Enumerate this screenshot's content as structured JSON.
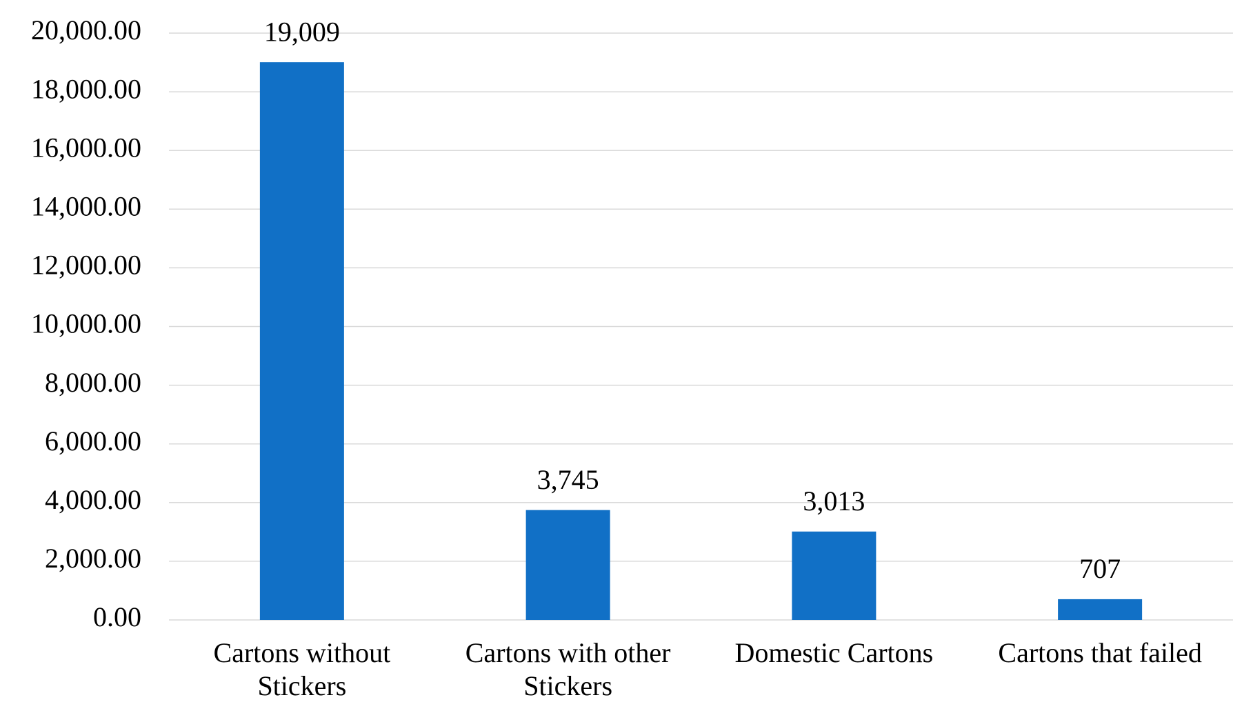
{
  "chart_data": {
    "type": "bar",
    "categories": [
      "Cartons without Stickers",
      "Cartons with other Stickers",
      "Domestic Cartons",
      "Cartons that failed"
    ],
    "values": [
      19009,
      3745,
      3013,
      707
    ],
    "value_labels": [
      "19,009",
      "3,745",
      "3,013",
      "707"
    ],
    "color": "#1170c6",
    "ylim": [
      0,
      20000
    ],
    "yticks": [
      {
        "value": 0,
        "label": "0.00"
      },
      {
        "value": 2000,
        "label": "2,000.00"
      },
      {
        "value": 4000,
        "label": "4,000.00"
      },
      {
        "value": 6000,
        "label": "6,000.00"
      },
      {
        "value": 8000,
        "label": "8,000.00"
      },
      {
        "value": 10000,
        "label": "10,000.00"
      },
      {
        "value": 12000,
        "label": "12,000.00"
      },
      {
        "value": 14000,
        "label": "14,000.00"
      },
      {
        "value": 16000,
        "label": "16,000.00"
      },
      {
        "value": 18000,
        "label": "18,000.00"
      },
      {
        "value": 20000,
        "label": "20,000.00"
      }
    ],
    "grid": true
  }
}
